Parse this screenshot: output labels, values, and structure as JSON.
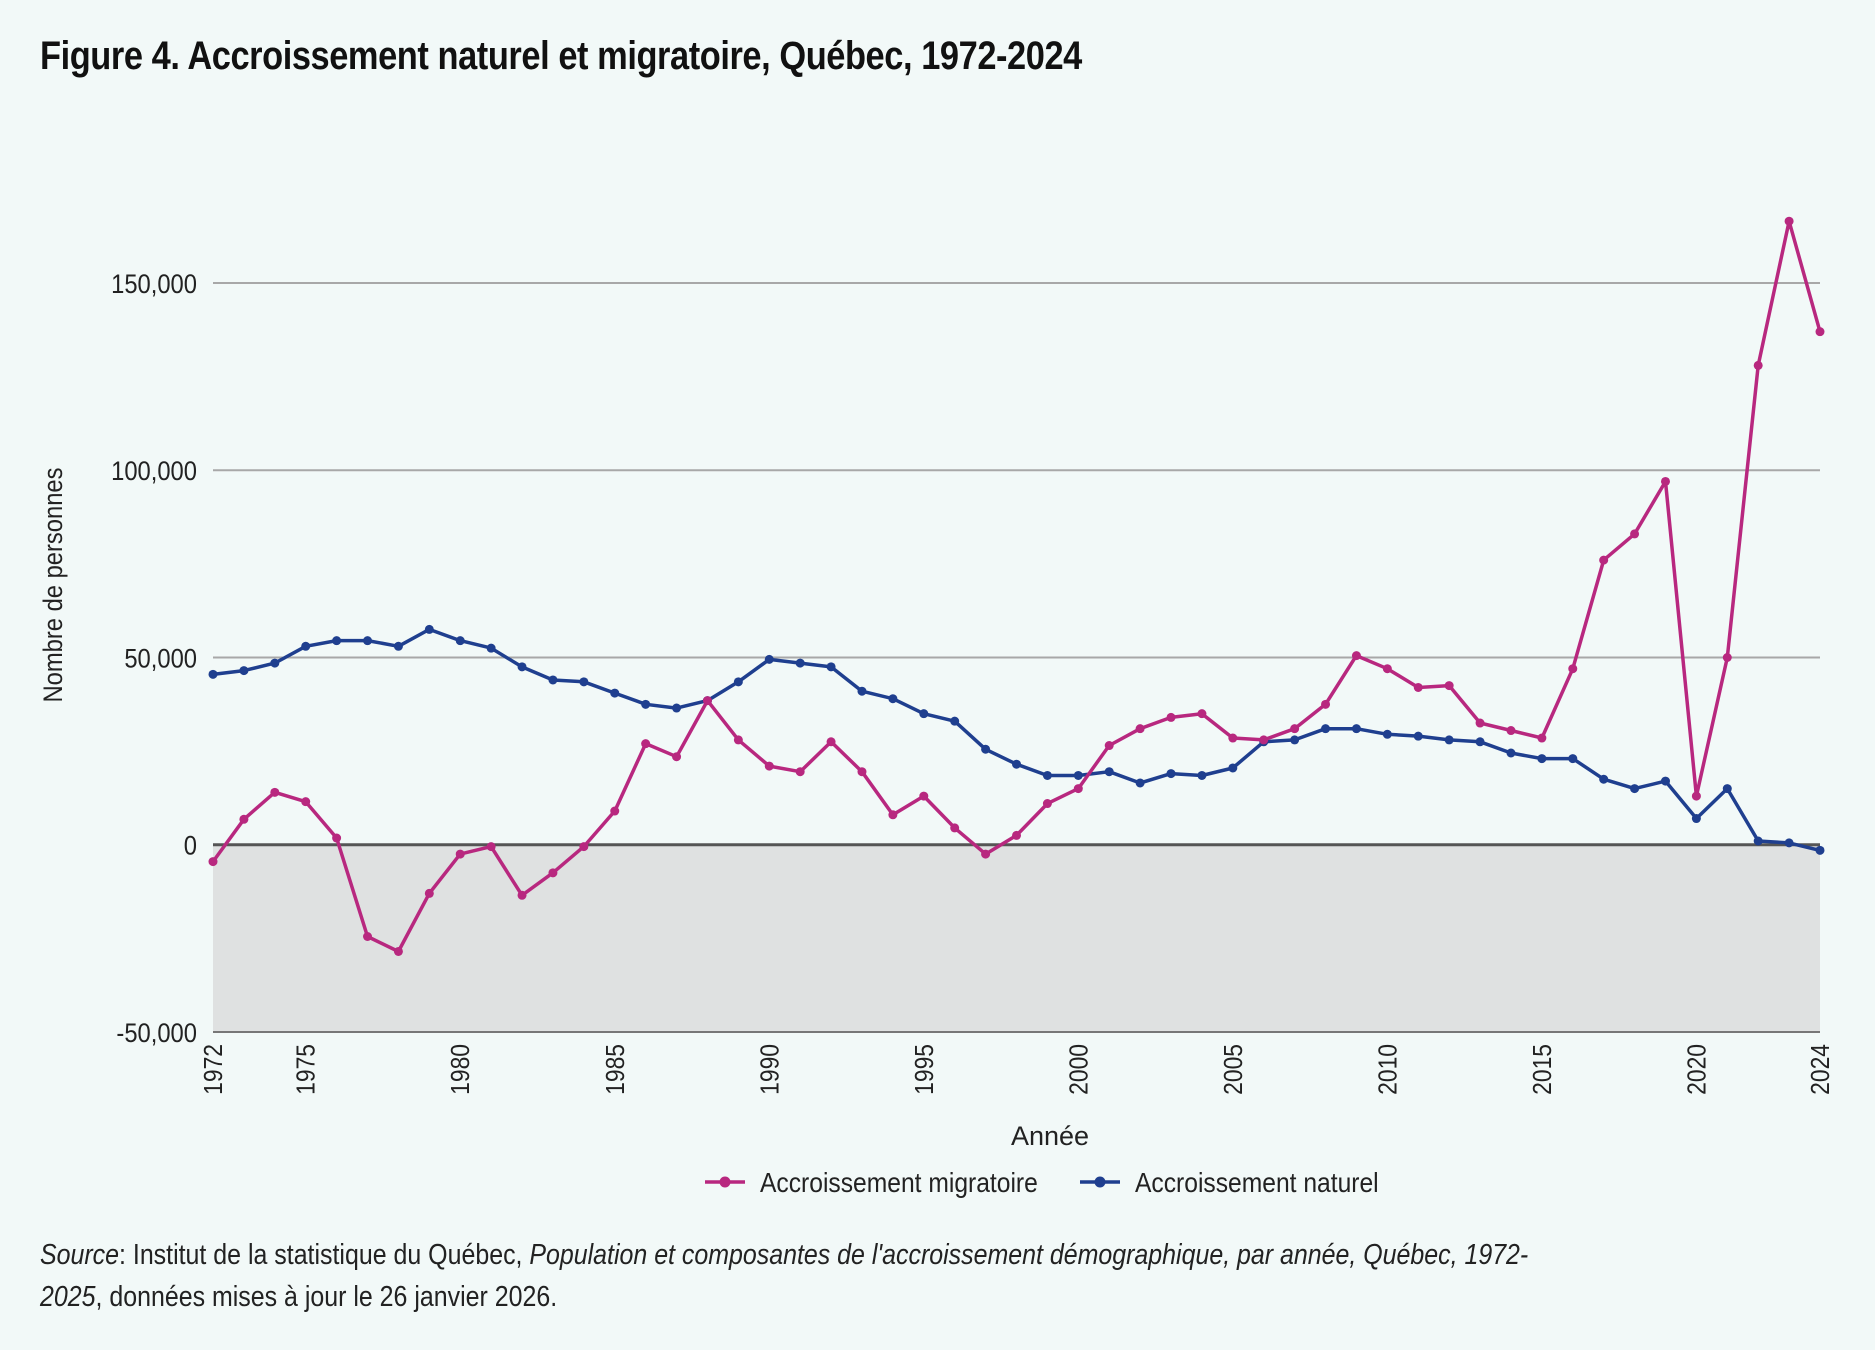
{
  "title": "Figure 4. Accroissement naturel et migratoire, Québec, 1972-2024",
  "source": {
    "label": "Source",
    "sep": ": Institut de la statistique du Québec, ",
    "publication": "Population et composantes de l'accroissement démographique, par année, Québec, 1972-2025",
    "suffix": ", données mises à jour le 26 janvier 2026."
  },
  "colors": {
    "migratoire": "#b8287f",
    "naturel": "#1f3f8f",
    "negative_area": "#dfe1e1",
    "grid": "#a8a8a8",
    "zero_line": "#555555",
    "background": "#f2f9f8"
  },
  "chart_data": {
    "type": "line",
    "title": "Figure 4. Accroissement naturel et migratoire, Québec, 1972-2024",
    "xlabel": "Année",
    "ylabel": "Nombre de personnes",
    "ylim": [
      -50000,
      150000
    ],
    "yticks": [
      -50000,
      0,
      50000,
      100000,
      150000
    ],
    "ytick_labels": [
      "-50,000",
      "0",
      "50,000",
      "100,000",
      "150,000"
    ],
    "xticks": [
      1972,
      1975,
      1980,
      1985,
      1990,
      1995,
      2000,
      2005,
      2010,
      2015,
      2020,
      2024
    ],
    "xtick_labels": [
      "1972",
      "1975",
      "1980",
      "1985",
      "1990",
      "1995",
      "2000",
      "2005",
      "2010",
      "2015",
      "2020",
      "2024"
    ],
    "grid": true,
    "legend_position": "bottom",
    "negative_region_shaded": true,
    "x": [
      1972,
      1973,
      1974,
      1975,
      1976,
      1977,
      1978,
      1979,
      1980,
      1981,
      1982,
      1983,
      1984,
      1985,
      1986,
      1987,
      1988,
      1989,
      1990,
      1991,
      1992,
      1993,
      1994,
      1995,
      1996,
      1997,
      1998,
      1999,
      2000,
      2001,
      2002,
      2003,
      2004,
      2005,
      2006,
      2007,
      2008,
      2009,
      2010,
      2011,
      2012,
      2013,
      2014,
      2015,
      2016,
      2017,
      2018,
      2019,
      2020,
      2021,
      2022,
      2023,
      2024
    ],
    "series": [
      {
        "name": "Accroissement migratoire",
        "color": "#b8287f",
        "values": [
          -4500,
          6800,
          14000,
          11500,
          1800,
          -24500,
          -28500,
          -13000,
          -2500,
          -500,
          -13500,
          -7500,
          -500,
          9000,
          27000,
          23500,
          38500,
          28000,
          21000,
          19500,
          27500,
          19500,
          8000,
          13000,
          4500,
          -2500,
          2500,
          11000,
          15000,
          26500,
          31000,
          34000,
          35000,
          28500,
          28000,
          31000,
          37500,
          50500,
          47000,
          42000,
          42500,
          32500,
          30500,
          28500,
          47000,
          76000,
          83000,
          97000,
          13000,
          50000,
          128000,
          166500,
          137000
        ]
      },
      {
        "name": "Accroissement naturel",
        "color": "#1f3f8f",
        "values": [
          45500,
          46500,
          48500,
          53000,
          54500,
          54500,
          53000,
          57500,
          54500,
          52500,
          47500,
          44000,
          43500,
          40500,
          37500,
          36500,
          38500,
          43500,
          49500,
          48500,
          47500,
          41000,
          39000,
          35000,
          33000,
          25500,
          21500,
          18500,
          18500,
          19500,
          16500,
          19000,
          18500,
          20500,
          27500,
          28000,
          31000,
          31000,
          29500,
          29000,
          28000,
          27500,
          24500,
          23000,
          23000,
          17500,
          15000,
          17000,
          7000,
          15000,
          1000,
          500,
          -1500
        ]
      }
    ]
  }
}
